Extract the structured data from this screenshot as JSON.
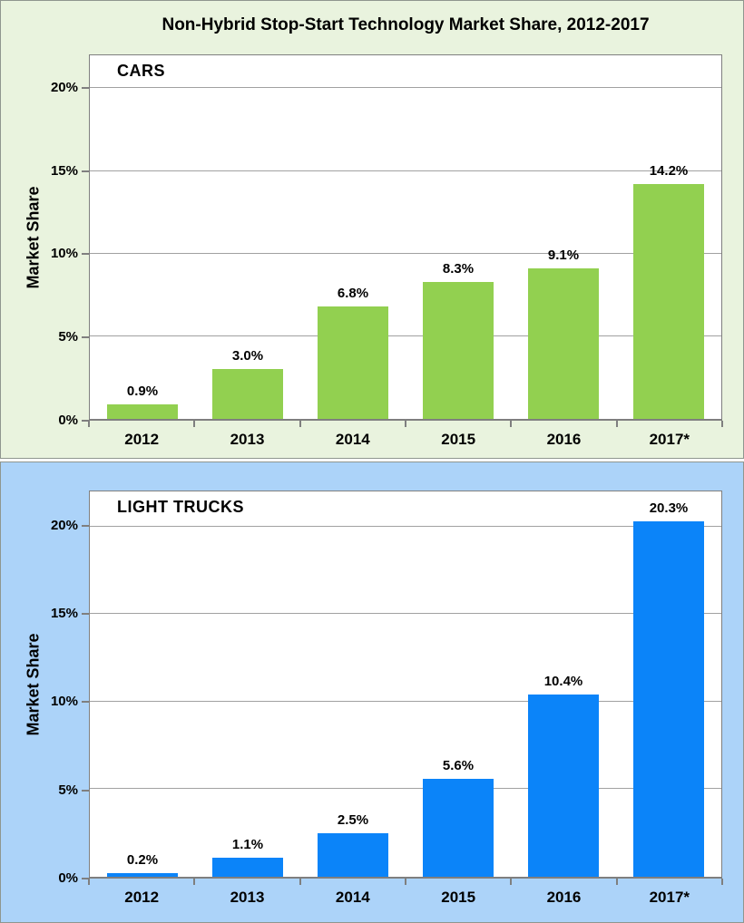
{
  "title": "Non-Hybrid Stop-Start Technology Market Share, 2012-2017",
  "chart_data": [
    {
      "type": "bar",
      "panel_label": "CARS",
      "categories": [
        "2012",
        "2013",
        "2014",
        "2015",
        "2016",
        "2017*"
      ],
      "values": [
        0.9,
        3.0,
        6.8,
        8.3,
        9.1,
        14.2
      ],
      "value_labels": [
        "0.9%",
        "3.0%",
        "6.8%",
        "8.3%",
        "9.1%",
        "14.2%"
      ],
      "ylabel": "Market Share",
      "yticks": [
        0,
        5,
        10,
        15,
        20
      ],
      "ytick_labels": [
        "0%",
        "5%",
        "10%",
        "15%",
        "20%"
      ],
      "ylim": [
        0,
        22
      ],
      "grid": true,
      "legend": "none",
      "bar_color": "#92d050",
      "panel_bg": "#e9f3de"
    },
    {
      "type": "bar",
      "panel_label": "LIGHT TRUCKS",
      "categories": [
        "2012",
        "2013",
        "2014",
        "2015",
        "2016",
        "2017*"
      ],
      "values": [
        0.2,
        1.1,
        2.5,
        5.6,
        10.4,
        20.3
      ],
      "value_labels": [
        "0.2%",
        "1.1%",
        "2.5%",
        "5.6%",
        "10.4%",
        "20.3%"
      ],
      "ylabel": "Market Share",
      "yticks": [
        0,
        5,
        10,
        15,
        20
      ],
      "ytick_labels": [
        "0%",
        "5%",
        "10%",
        "15%",
        "20%"
      ],
      "ylim": [
        0,
        22
      ],
      "grid": true,
      "legend": "none",
      "bar_color": "#0b84f9",
      "panel_bg": "#acd3f9"
    }
  ],
  "colors": {
    "grid_line": "#a1a1a1",
    "plot_border": "#7f7f7f",
    "text": "#000000"
  }
}
